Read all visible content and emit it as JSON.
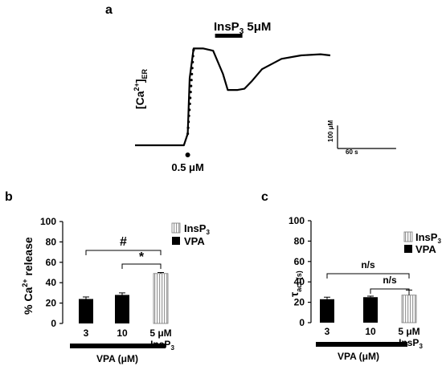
{
  "panel_labels": {
    "a": "a",
    "b": "b",
    "c": "c"
  },
  "panel_a": {
    "ylabel": "[Ca",
    "ylabel_sup": "2+",
    "ylabel_close": "]",
    "ylabel_sub": "ER",
    "bar_label": "InsP",
    "bar_label_sub": "3",
    "bar_label_conc": " 5μM",
    "marker_label": "0.5 μM",
    "scale_y": "100 μM",
    "scale_x": "60 s"
  },
  "panel_b": {
    "ylabel": "% Ca",
    "ylabel_sup": "2+",
    "ylabel_tail": " release",
    "legend": {
      "insp3": "InsP",
      "insp3_sub": "3",
      "vpa": "VPA"
    },
    "sig_hash": "#",
    "sig_star": "*",
    "insp_label_1": "5 μM",
    "insp_label_2": "InsP",
    "insp_label_sub": "3",
    "vpa_axis": "VPA (μM)"
  },
  "panel_c": {
    "ylabel": "τ",
    "ylabel_sub": "act (s)",
    "legend": {
      "insp3": "InsP",
      "insp3_sub": "3",
      "vpa": "VPA"
    },
    "sig_top": "n/s",
    "sig_bottom": "n/s",
    "insp_label_1": "5 μM",
    "insp_label_2": "InsP",
    "insp_label_sub": "3",
    "vpa_axis": "VPA (μM)"
  },
  "colors": {
    "vpa": "#000000",
    "insp3": "#9a9a9a"
  },
  "chart_data": [
    {
      "type": "line",
      "panel": "a",
      "x_unit": "s",
      "y_unit": "μM",
      "x": [
        0,
        20,
        40,
        50,
        54,
        56,
        60,
        70,
        80,
        90,
        95,
        98,
        105,
        112,
        120,
        130,
        150,
        170,
        190,
        200
      ],
      "y": [
        10,
        10,
        10,
        10,
        60,
        300,
        430,
        430,
        420,
        320,
        250,
        250,
        250,
        255,
        290,
        340,
        385,
        400,
        405,
        400
      ],
      "markers": [
        {
          "label": "0.5 μM",
          "x": 54
        }
      ],
      "bars": [
        {
          "label": "InsP3 5μM",
          "x_start": 82,
          "x_end": 110
        }
      ],
      "scale_bar": {
        "y": 100,
        "x": 60
      }
    },
    {
      "type": "bar",
      "panel": "b",
      "categories": [
        "3",
        "10",
        "5 μM InsP3"
      ],
      "values": [
        24,
        28,
        49
      ],
      "errors": [
        2,
        2,
        1
      ],
      "groups": [
        "VPA",
        "VPA",
        "InsP3"
      ],
      "ylabel": "% Ca2+ release",
      "ylim": [
        0,
        100
      ],
      "yticks": [
        0,
        20,
        40,
        60,
        80,
        100
      ],
      "significance": [
        {
          "from": 0,
          "to": 2,
          "label": "#"
        },
        {
          "from": 1,
          "to": 2,
          "label": "*"
        }
      ],
      "grid": false
    },
    {
      "type": "bar",
      "panel": "c",
      "categories": [
        "3",
        "10",
        "5 μM InsP3"
      ],
      "values": [
        23,
        25,
        27
      ],
      "errors": [
        2,
        1,
        5
      ],
      "groups": [
        "VPA",
        "VPA",
        "InsP3"
      ],
      "ylabel": "τact (s)",
      "ylim": [
        0,
        100
      ],
      "yticks": [
        0,
        20,
        40,
        60,
        80,
        100
      ],
      "significance": [
        {
          "from": 0,
          "to": 2,
          "label": "n/s"
        },
        {
          "from": 1,
          "to": 2,
          "label": "n/s"
        }
      ],
      "grid": false
    }
  ]
}
